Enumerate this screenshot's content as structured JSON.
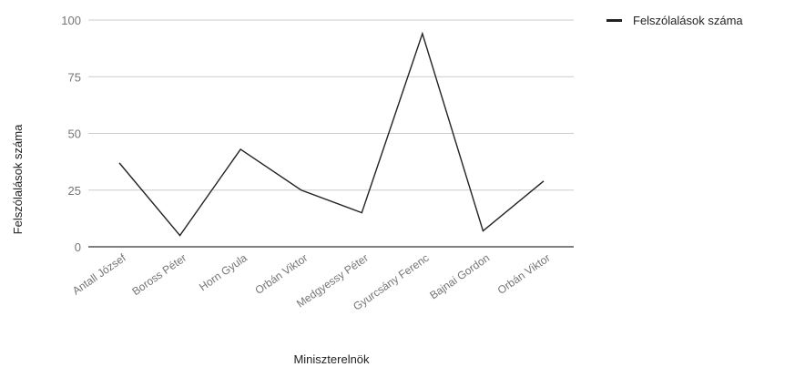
{
  "chart_data": {
    "type": "line",
    "title": "",
    "xlabel": "Miniszterelnök",
    "ylabel": "Felszólalások száma",
    "categories": [
      "Antall József",
      "Boross Péter",
      "Horn Gyula",
      "Orbán Viktor",
      "Medgyessy Péter",
      "Gyurcsány Ferenc",
      "Bajnai Gordon",
      "Orbán Viktor"
    ],
    "series": [
      {
        "name": "Felszólalások száma",
        "values": [
          37,
          5,
          43,
          25,
          15,
          94,
          7,
          29
        ]
      }
    ],
    "ylim": [
      0,
      100
    ],
    "yticks": [
      0,
      25,
      50,
      75,
      100
    ],
    "grid": true,
    "legend_position": "top-right",
    "colors": {
      "line": "#222222",
      "grid": "#cccccc",
      "axis": "#333333"
    }
  }
}
